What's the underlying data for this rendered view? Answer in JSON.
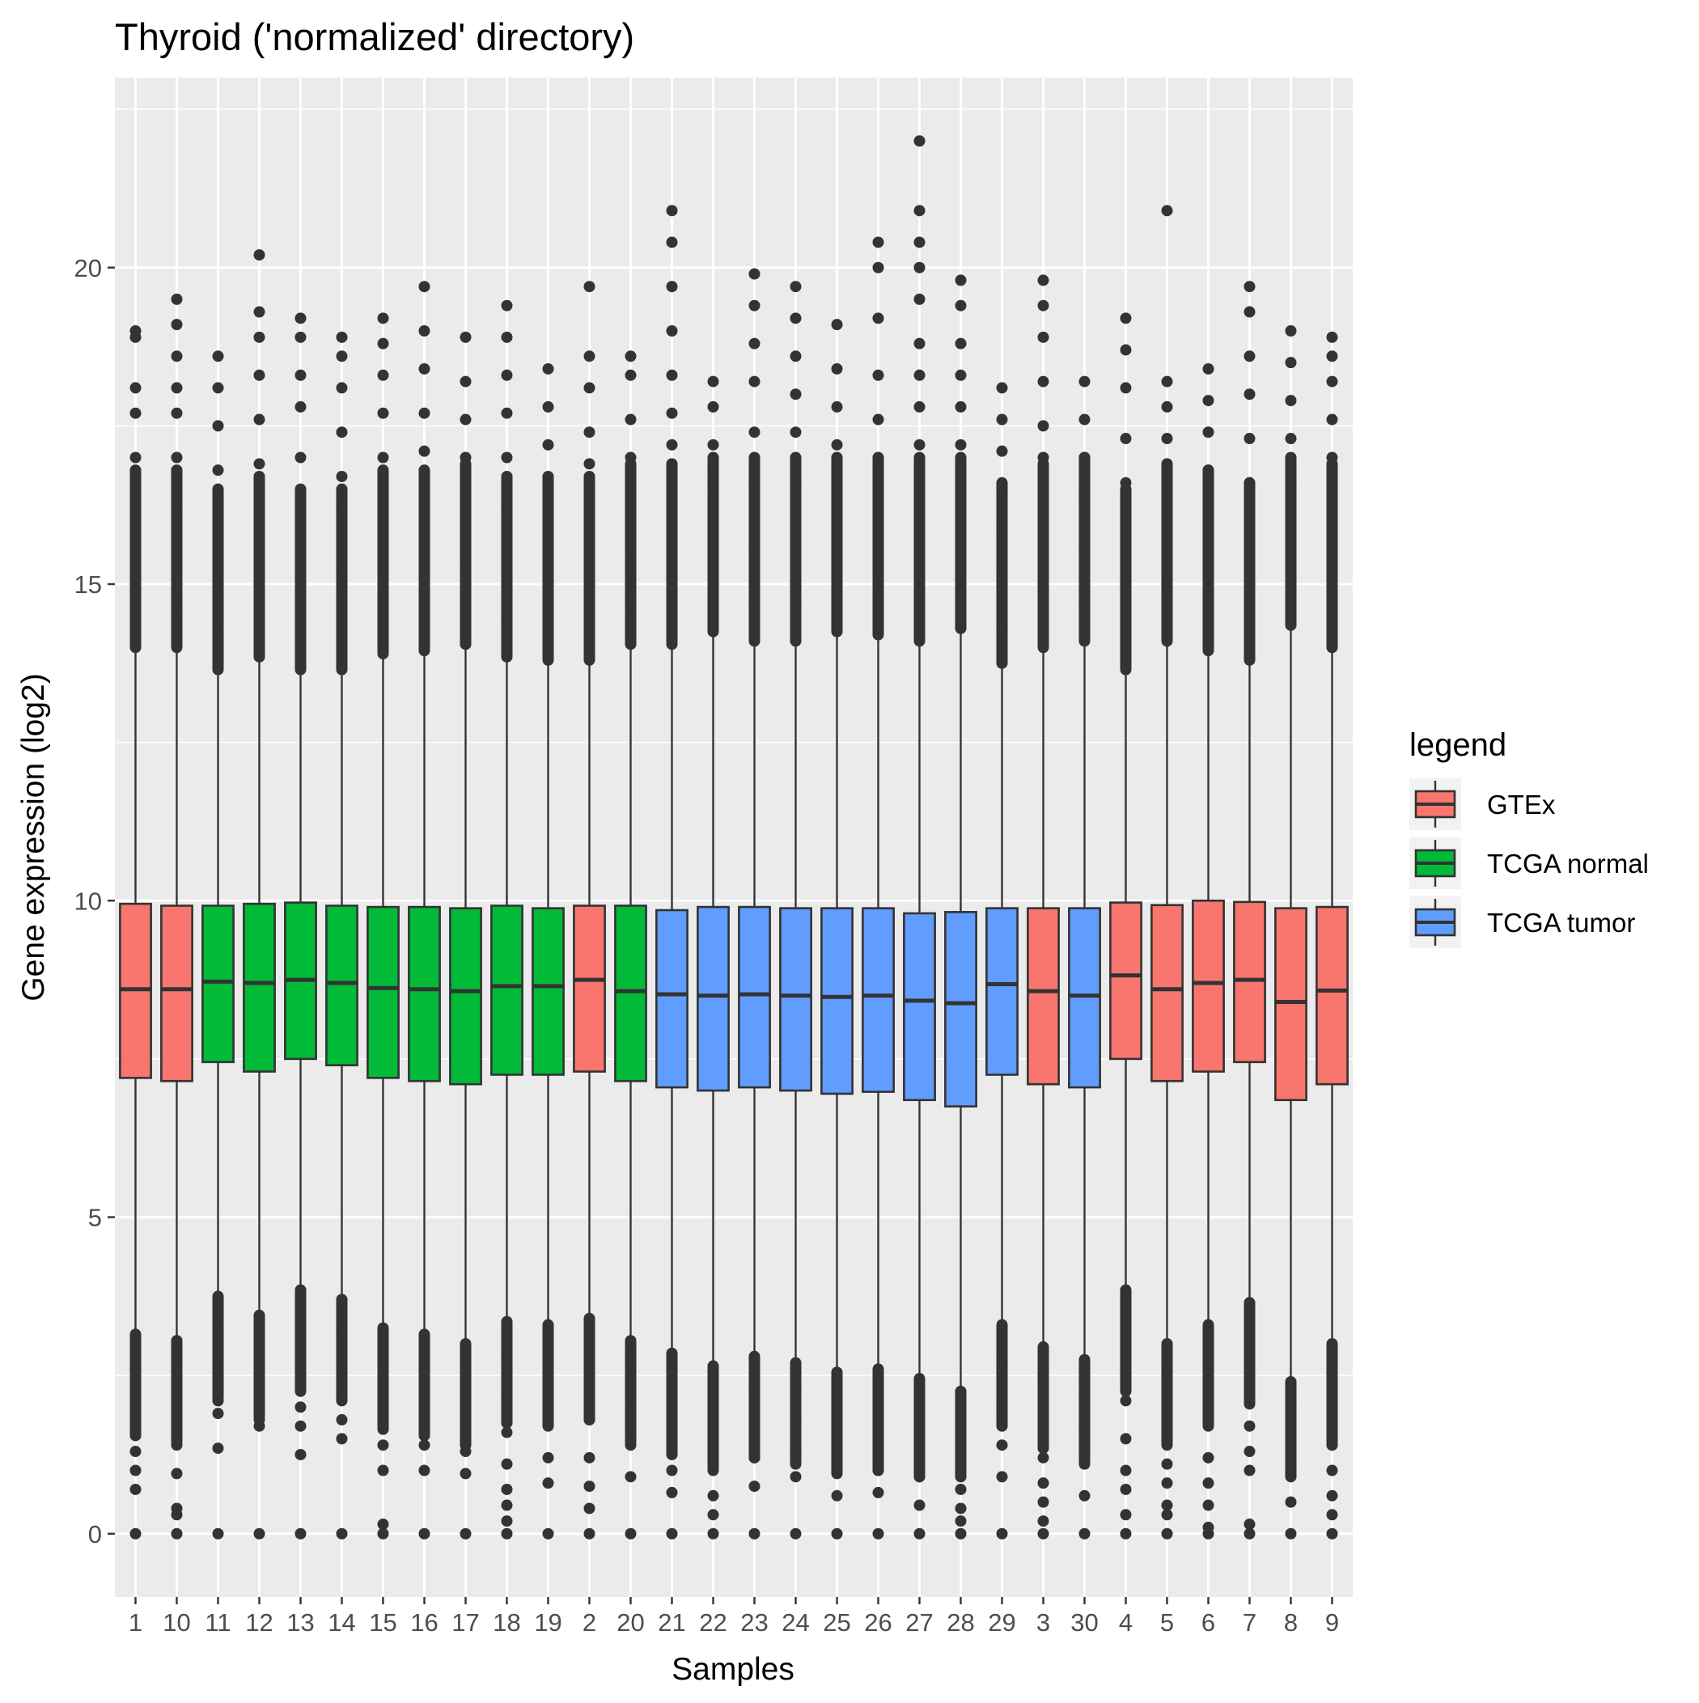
{
  "chart_data": {
    "type": "boxplot",
    "title": "Thyroid ('normalized' directory)",
    "xlabel": "Samples",
    "ylabel": "Gene expression (log2)",
    "ylim": [
      -1,
      23
    ],
    "yticks": [
      0,
      5,
      10,
      15,
      20
    ],
    "grid": true,
    "legend": {
      "title": "legend",
      "position": "right",
      "entries": [
        {
          "name": "GTEx",
          "color": "#F8766D"
        },
        {
          "name": "TCGA normal",
          "color": "#00BA38"
        },
        {
          "name": "TCGA tumor",
          "color": "#619CFF"
        }
      ]
    },
    "samples": [
      {
        "label": "1",
        "group": "GTEx",
        "q1": 7.2,
        "median": 8.6,
        "q3": 9.95,
        "whisker_low": 3.15,
        "whisker_high": 14.0,
        "outliers_high": [
          14.5,
          15.5,
          16.5,
          17.0,
          17.7,
          18.1,
          18.9,
          19.0
        ],
        "outliers_low": [
          0,
          0.7,
          1.0,
          1.3,
          1.7,
          2.2,
          2.7
        ]
      },
      {
        "label": "10",
        "group": "GTEx",
        "q1": 7.15,
        "median": 8.6,
        "q3": 9.92,
        "whisker_low": 3.05,
        "whisker_high": 14.0,
        "outliers_high": [
          14.5,
          15.5,
          16.2,
          17.0,
          17.7,
          18.1,
          18.6,
          19.1,
          19.5
        ],
        "outliers_low": [
          0,
          0.3,
          0.4,
          0.95,
          1.4,
          2.0,
          2.6
        ]
      },
      {
        "label": "11",
        "group": "TCGA normal",
        "q1": 7.45,
        "median": 8.72,
        "q3": 9.92,
        "whisker_low": 3.75,
        "whisker_high": 13.65,
        "outliers_high": [
          14.2,
          15.0,
          16.0,
          16.8,
          17.5,
          18.1,
          18.6
        ],
        "outliers_low": [
          0,
          1.35,
          1.9,
          2.1,
          2.6,
          3.2
        ]
      },
      {
        "label": "12",
        "group": "TCGA normal",
        "q1": 7.3,
        "median": 8.7,
        "q3": 9.95,
        "whisker_low": 3.45,
        "whisker_high": 13.85,
        "outliers_high": [
          14.4,
          15.3,
          16.3,
          16.9,
          17.6,
          18.3,
          18.9,
          19.3,
          20.2
        ],
        "outliers_low": [
          0,
          1.7,
          1.8,
          2.25,
          2.6,
          3.0
        ]
      },
      {
        "label": "13",
        "group": "TCGA normal",
        "q1": 7.5,
        "median": 8.75,
        "q3": 9.97,
        "whisker_low": 3.85,
        "whisker_high": 13.65,
        "outliers_high": [
          14.2,
          15.0,
          16.0,
          17.0,
          17.8,
          18.3,
          18.9,
          19.2
        ],
        "outliers_low": [
          0,
          1.25,
          1.7,
          2.0,
          2.3,
          2.7,
          3.3
        ]
      },
      {
        "label": "14",
        "group": "TCGA normal",
        "q1": 7.4,
        "median": 8.7,
        "q3": 9.92,
        "whisker_low": 3.7,
        "whisker_high": 13.65,
        "outliers_high": [
          14.2,
          15.2,
          16.2,
          16.7,
          17.4,
          18.1,
          18.6,
          18.9
        ],
        "outliers_low": [
          0,
          1.5,
          1.8,
          2.2,
          2.6,
          3.2
        ]
      },
      {
        "label": "15",
        "group": "TCGA normal",
        "q1": 7.2,
        "median": 8.62,
        "q3": 9.9,
        "whisker_low": 3.25,
        "whisker_high": 13.9,
        "outliers_high": [
          14.5,
          15.3,
          16.3,
          17.0,
          17.7,
          18.3,
          18.8,
          19.2
        ],
        "outliers_low": [
          0,
          0.15,
          1.0,
          1.4,
          1.9,
          2.5
        ]
      },
      {
        "label": "16",
        "group": "TCGA normal",
        "q1": 7.15,
        "median": 8.6,
        "q3": 9.9,
        "whisker_low": 3.15,
        "whisker_high": 13.95,
        "outliers_high": [
          14.5,
          15.3,
          16.2,
          17.1,
          17.7,
          18.4,
          19.0,
          19.7
        ],
        "outliers_low": [
          0,
          1.0,
          1.4,
          1.9,
          2.6
        ]
      },
      {
        "label": "17",
        "group": "TCGA normal",
        "q1": 7.1,
        "median": 8.57,
        "q3": 9.88,
        "whisker_low": 3.0,
        "whisker_high": 14.05,
        "outliers_high": [
          14.6,
          15.4,
          16.3,
          17.0,
          17.6,
          18.2,
          18.9
        ],
        "outliers_low": [
          0,
          0.95,
          1.3,
          1.8,
          2.4
        ]
      },
      {
        "label": "18",
        "group": "TCGA normal",
        "q1": 7.25,
        "median": 8.65,
        "q3": 9.92,
        "whisker_low": 3.35,
        "whisker_high": 13.85,
        "outliers_high": [
          14.4,
          15.3,
          16.2,
          17.0,
          17.7,
          18.3,
          18.9,
          19.4
        ],
        "outliers_low": [
          0,
          0.2,
          0.45,
          0.7,
          1.1,
          1.6,
          2.2,
          2.8
        ]
      },
      {
        "label": "19",
        "group": "TCGA normal",
        "q1": 7.25,
        "median": 8.65,
        "q3": 9.88,
        "whisker_low": 3.3,
        "whisker_high": 13.8,
        "outliers_high": [
          14.4,
          15.2,
          16.0,
          16.6,
          17.2,
          17.8,
          18.4
        ],
        "outliers_low": [
          0,
          0.8,
          1.2,
          1.8,
          2.5
        ]
      },
      {
        "label": "2",
        "group": "GTEx",
        "q1": 7.3,
        "median": 8.75,
        "q3": 9.92,
        "whisker_low": 3.4,
        "whisker_high": 13.8,
        "outliers_high": [
          14.4,
          15.3,
          16.2,
          16.9,
          17.4,
          18.1,
          18.6,
          19.7
        ],
        "outliers_low": [
          0,
          0.4,
          0.75,
          1.2,
          1.8,
          2.5
        ]
      },
      {
        "label": "20",
        "group": "TCGA normal",
        "q1": 7.15,
        "median": 8.57,
        "q3": 9.92,
        "whisker_low": 3.05,
        "whisker_high": 14.05,
        "outliers_high": [
          14.6,
          15.5,
          16.4,
          17.0,
          17.6,
          18.3,
          18.6
        ],
        "outliers_low": [
          0,
          0.9,
          1.4,
          1.7,
          2.0,
          2.4,
          2.8
        ]
      },
      {
        "label": "21",
        "group": "TCGA tumor",
        "q1": 7.05,
        "median": 8.52,
        "q3": 9.85,
        "whisker_low": 2.85,
        "whisker_high": 14.05,
        "outliers_high": [
          14.6,
          15.6,
          16.7,
          17.2,
          17.7,
          18.3,
          19.0,
          19.7,
          20.4,
          20.9
        ],
        "outliers_low": [
          0,
          0.65,
          1.0,
          1.5,
          2.0,
          2.4
        ]
      },
      {
        "label": "22",
        "group": "TCGA tumor",
        "q1": 7.0,
        "median": 8.5,
        "q3": 9.9,
        "whisker_low": 2.65,
        "whisker_high": 14.25,
        "outliers_high": [
          14.8,
          15.6,
          16.6,
          17.2,
          17.8,
          18.2
        ],
        "outliers_low": [
          0,
          0.3,
          0.6,
          1.0,
          1.5,
          2.1
        ]
      },
      {
        "label": "23",
        "group": "TCGA tumor",
        "q1": 7.05,
        "median": 8.52,
        "q3": 9.9,
        "whisker_low": 2.8,
        "whisker_high": 14.1,
        "outliers_high": [
          14.7,
          15.6,
          16.6,
          17.4,
          18.2,
          18.8,
          19.4,
          19.9
        ],
        "outliers_low": [
          0,
          0.75,
          1.2,
          1.7,
          2.3
        ]
      },
      {
        "label": "24",
        "group": "TCGA tumor",
        "q1": 7.0,
        "median": 8.5,
        "q3": 9.88,
        "whisker_low": 2.7,
        "whisker_high": 14.1,
        "outliers_high": [
          14.7,
          15.6,
          16.6,
          17.4,
          18.0,
          18.6,
          19.2,
          19.7
        ],
        "outliers_low": [
          0,
          0.9,
          1.3,
          1.8,
          2.3
        ]
      },
      {
        "label": "25",
        "group": "TCGA tumor",
        "q1": 6.95,
        "median": 8.48,
        "q3": 9.88,
        "whisker_low": 2.55,
        "whisker_high": 14.25,
        "outliers_high": [
          14.8,
          15.8,
          16.6,
          17.2,
          17.8,
          18.4,
          19.1
        ],
        "outliers_low": [
          0,
          0.6,
          1.0,
          1.5,
          2.1
        ]
      },
      {
        "label": "26",
        "group": "TCGA tumor",
        "q1": 6.98,
        "median": 8.5,
        "q3": 9.88,
        "whisker_low": 2.6,
        "whisker_high": 14.2,
        "outliers_high": [
          14.8,
          15.8,
          16.8,
          17.6,
          18.3,
          19.2,
          20.0,
          20.4
        ],
        "outliers_low": [
          0,
          0.65,
          1.0,
          1.5,
          2.1
        ]
      },
      {
        "label": "27",
        "group": "TCGA tumor",
        "q1": 6.85,
        "median": 8.42,
        "q3": 9.8,
        "whisker_low": 2.45,
        "whisker_high": 14.1,
        "outliers_high": [
          14.7,
          15.6,
          16.5,
          17.2,
          17.8,
          18.3,
          18.8,
          19.5,
          20.0,
          20.4,
          20.9,
          22.0
        ],
        "outliers_low": [
          0,
          0.45,
          0.9,
          1.4,
          2.0
        ]
      },
      {
        "label": "28",
        "group": "TCGA tumor",
        "q1": 6.75,
        "median": 8.38,
        "q3": 9.82,
        "whisker_low": 2.25,
        "whisker_high": 14.3,
        "outliers_high": [
          14.9,
          15.7,
          16.5,
          17.2,
          17.8,
          18.3,
          18.8,
          19.4,
          19.8
        ],
        "outliers_low": [
          0,
          0.2,
          0.4,
          0.7,
          1.2,
          1.8
        ]
      },
      {
        "label": "29",
        "group": "TCGA tumor",
        "q1": 7.25,
        "median": 8.68,
        "q3": 9.88,
        "whisker_low": 3.3,
        "whisker_high": 13.75,
        "outliers_high": [
          14.3,
          15.1,
          15.9,
          16.5,
          17.1,
          17.6,
          18.1
        ],
        "outliers_low": [
          0,
          0.9,
          1.4,
          2.0,
          2.7
        ]
      },
      {
        "label": "3",
        "group": "GTEx",
        "q1": 7.1,
        "median": 8.57,
        "q3": 9.88,
        "whisker_low": 2.95,
        "whisker_high": 14.0,
        "outliers_high": [
          14.6,
          15.5,
          16.4,
          17.0,
          17.5,
          18.2,
          18.9,
          19.4,
          19.8
        ],
        "outliers_low": [
          0,
          0.2,
          0.5,
          0.8,
          1.2,
          1.8,
          2.4
        ]
      },
      {
        "label": "30",
        "group": "TCGA tumor",
        "q1": 7.05,
        "median": 8.5,
        "q3": 9.88,
        "whisker_low": 2.75,
        "whisker_high": 14.1,
        "outliers_high": [
          14.7,
          15.6,
          16.4,
          17.0,
          17.6,
          18.2
        ],
        "outliers_low": [
          0,
          0.6,
          1.1,
          1.6,
          2.2
        ]
      },
      {
        "label": "4",
        "group": "GTEx",
        "q1": 7.5,
        "median": 8.82,
        "q3": 9.97,
        "whisker_low": 3.85,
        "whisker_high": 13.65,
        "outliers_high": [
          14.2,
          15.0,
          15.8,
          16.6,
          17.3,
          18.1,
          18.7,
          19.2
        ],
        "outliers_low": [
          0,
          0.3,
          0.7,
          1.0,
          1.5,
          2.1,
          2.8
        ]
      },
      {
        "label": "5",
        "group": "GTEx",
        "q1": 7.15,
        "median": 8.6,
        "q3": 9.93,
        "whisker_low": 3.0,
        "whisker_high": 14.1,
        "outliers_high": [
          14.6,
          15.4,
          16.2,
          16.8,
          17.3,
          17.8,
          18.2,
          20.9
        ],
        "outliers_low": [
          0,
          0.3,
          0.45,
          0.8,
          1.1,
          1.6,
          2.3
        ]
      },
      {
        "label": "6",
        "group": "GTEx",
        "q1": 7.3,
        "median": 8.7,
        "q3": 10.0,
        "whisker_low": 3.3,
        "whisker_high": 13.95,
        "outliers_high": [
          14.5,
          15.4,
          16.3,
          16.8,
          17.4,
          17.9,
          18.4
        ],
        "outliers_low": [
          0,
          0.1,
          0.45,
          0.8,
          1.2,
          1.8,
          2.5
        ]
      },
      {
        "label": "7",
        "group": "GTEx",
        "q1": 7.45,
        "median": 8.75,
        "q3": 9.98,
        "whisker_low": 3.65,
        "whisker_high": 13.8,
        "outliers_high": [
          14.3,
          15.0,
          15.8,
          16.6,
          17.3,
          18.0,
          18.6,
          19.3,
          19.7
        ],
        "outliers_low": [
          0,
          0.15,
          1.0,
          1.3,
          1.7,
          2.3,
          3.0
        ]
      },
      {
        "label": "8",
        "group": "GTEx",
        "q1": 6.85,
        "median": 8.4,
        "q3": 9.88,
        "whisker_low": 2.4,
        "whisker_high": 14.35,
        "outliers_high": [
          14.9,
          15.7,
          16.6,
          17.3,
          17.9,
          18.5,
          19.0
        ],
        "outliers_low": [
          0,
          0.5,
          1.0,
          1.5,
          2.0
        ]
      },
      {
        "label": "9",
        "group": "GTEx",
        "q1": 7.1,
        "median": 8.58,
        "q3": 9.9,
        "whisker_low": 3.0,
        "whisker_high": 14.0,
        "outliers_high": [
          14.6,
          15.5,
          16.4,
          17.0,
          17.6,
          18.2,
          18.6,
          18.9
        ],
        "outliers_low": [
          0,
          0.3,
          0.6,
          1.0,
          1.4,
          2.0,
          2.6
        ]
      }
    ]
  }
}
